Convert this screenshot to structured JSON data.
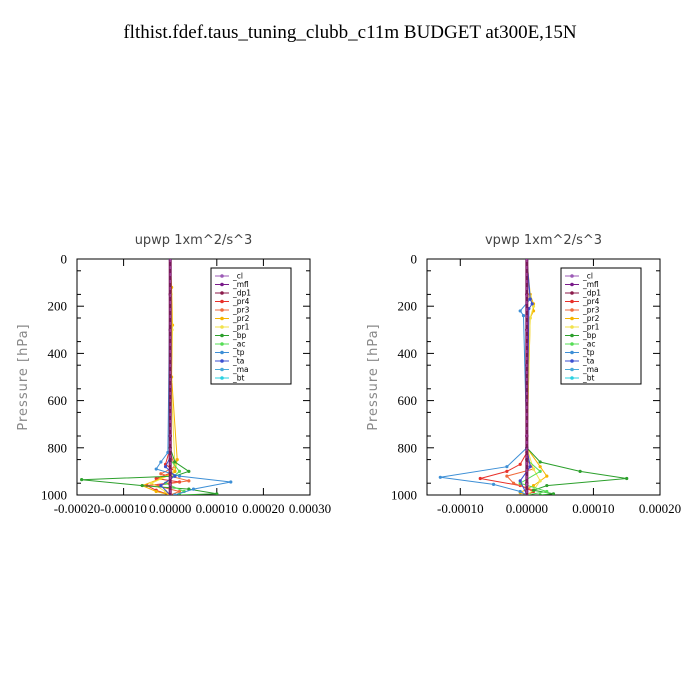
{
  "figure_title": "flthist.fdef.taus_tuning_clubb_c11m  BUDGET at300E,15N",
  "chart_data": [
    {
      "type": "line",
      "title": "upwp   1xm^2/s^3",
      "ylabel": "Pressure [hPa]",
      "xlabel": "",
      "xlim": [
        -0.0002,
        0.0003
      ],
      "ylim": [
        0,
        1000
      ],
      "y_inverted": true,
      "xticks": [
        -0.0002,
        -0.0001,
        0.0,
        0.0001,
        0.0002,
        0.0003
      ],
      "xtick_labels": [
        "-0.00020",
        "-0.00010",
        "0.00000",
        "0.00010",
        "0.00020",
        "0.00030"
      ],
      "yticks": [
        0,
        200,
        400,
        600,
        800,
        1000
      ],
      "ytick_labels": [
        "0",
        "200",
        "400",
        "600",
        "800",
        "1000"
      ],
      "legend_position": "top-right",
      "series": [
        {
          "name": "_cl",
          "color": "#9b59b6",
          "x": [
            0,
            0,
            0,
            0,
            0,
            0,
            0,
            0,
            0
          ],
          "y": [
            0,
            150,
            300,
            450,
            600,
            750,
            850,
            950,
            1000
          ]
        },
        {
          "name": "_mfl",
          "color": "#7a1a8a",
          "x": [
            0,
            0,
            0,
            0,
            0,
            0,
            0,
            0,
            0
          ],
          "y": [
            0,
            150,
            300,
            450,
            600,
            750,
            850,
            950,
            1000
          ]
        },
        {
          "name": "_dp1",
          "color": "#8b1a4a",
          "x": [
            0,
            0,
            0,
            0,
            0,
            0,
            0,
            0,
            0
          ],
          "y": [
            0,
            150,
            300,
            450,
            600,
            750,
            850,
            950,
            1000
          ]
        },
        {
          "name": "_pr4",
          "color": "#e8302a",
          "x": [
            0,
            0,
            -1e-05,
            1e-05,
            -3e-05,
            2e-05,
            -5e-05,
            -3e-05,
            0
          ],
          "y": [
            0,
            800,
            870,
            900,
            930,
            945,
            960,
            980,
            1000
          ]
        },
        {
          "name": "_pr3",
          "color": "#f06a3c",
          "x": [
            0,
            0,
            1e-05,
            -2e-05,
            4e-05,
            -3e-05,
            2e-05,
            0
          ],
          "y": [
            0,
            820,
            880,
            910,
            940,
            960,
            985,
            1000
          ]
        },
        {
          "name": "_pr2",
          "color": "#f5b400",
          "x": [
            0,
            3e-06,
            5e-06,
            3e-06,
            1.5e-05,
            1e-05,
            -2e-05,
            -6e-05,
            -3e-05,
            0
          ],
          "y": [
            0,
            120,
            280,
            500,
            850,
            900,
            930,
            960,
            985,
            1000
          ]
        },
        {
          "name": "_pr1",
          "color": "#f2e24a",
          "x": [
            0,
            2e-06,
            4e-06,
            2e-06,
            1e-05,
            5e-06,
            -4e-05,
            -1e-05,
            0
          ],
          "y": [
            0,
            150,
            300,
            520,
            870,
            910,
            950,
            985,
            1000
          ]
        },
        {
          "name": "_bp",
          "color": "#2ca02c",
          "x": [
            0,
            0,
            1e-05,
            4e-05,
            1e-05,
            -0.00019,
            -6e-05,
            4e-05,
            0.0001,
            2e-05
          ],
          "y": [
            0,
            800,
            860,
            900,
            920,
            935,
            960,
            975,
            995,
            1000
          ]
        },
        {
          "name": "_ac",
          "color": "#55dd55",
          "x": [
            0,
            0,
            2e-05,
            -1e-05,
            3e-05,
            1e-05
          ],
          "y": [
            0,
            850,
            900,
            950,
            985,
            1000
          ]
        },
        {
          "name": "_tp",
          "color": "#3d8fd6",
          "x": [
            0,
            -5e-06,
            -2e-05,
            -3e-05,
            2e-05,
            0.00013,
            5e-05,
            1e-05
          ],
          "y": [
            0,
            820,
            860,
            890,
            920,
            945,
            975,
            1000
          ]
        },
        {
          "name": "_ta",
          "color": "#3a4fd0",
          "x": [
            0,
            0,
            -1e-05,
            1e-05,
            -2e-05,
            0
          ],
          "y": [
            0,
            840,
            880,
            920,
            960,
            1000
          ]
        },
        {
          "name": "_ma",
          "color": "#4aaad8",
          "x": [
            0,
            0,
            0,
            0
          ],
          "y": [
            0,
            500,
            900,
            1000
          ]
        },
        {
          "name": "_bt",
          "color": "#2ad0e0",
          "x": [
            0,
            0,
            0,
            0
          ],
          "y": [
            0,
            500,
            900,
            1000
          ]
        }
      ]
    },
    {
      "type": "line",
      "title": "vpwp   1xm^2/s^3",
      "ylabel": "Pressure [hPa]",
      "xlabel": "",
      "xlim": [
        -0.00015,
        0.0002
      ],
      "ylim": [
        0,
        1000
      ],
      "y_inverted": true,
      "xticks": [
        -0.0001,
        0.0,
        0.0001,
        0.0002
      ],
      "xtick_labels": [
        "-0.00010",
        "0.00000",
        "0.00010",
        "0.00020"
      ],
      "yticks": [
        0,
        200,
        400,
        600,
        800,
        1000
      ],
      "ytick_labels": [
        "0",
        "200",
        "400",
        "600",
        "800",
        "1000"
      ],
      "legend_position": "top-right",
      "series": [
        {
          "name": "_cl",
          "color": "#9b59b6",
          "x": [
            0,
            0,
            0,
            0,
            0,
            0,
            0,
            0,
            0
          ],
          "y": [
            0,
            150,
            300,
            450,
            600,
            750,
            850,
            950,
            1000
          ]
        },
        {
          "name": "_mfl",
          "color": "#7a1a8a",
          "x": [
            0,
            0,
            0,
            0,
            0,
            0,
            0,
            0,
            0
          ],
          "y": [
            0,
            150,
            300,
            450,
            600,
            750,
            850,
            950,
            1000
          ]
        },
        {
          "name": "_dp1",
          "color": "#8b1a4a",
          "x": [
            0,
            0,
            0,
            0,
            0,
            0,
            0,
            0,
            0
          ],
          "y": [
            0,
            150,
            300,
            450,
            600,
            750,
            850,
            950,
            1000
          ]
        },
        {
          "name": "_pr4",
          "color": "#e8302a",
          "x": [
            0,
            0,
            -1e-05,
            -3e-05,
            -7e-05,
            -1e-05,
            1e-05,
            0
          ],
          "y": [
            0,
            820,
            870,
            900,
            930,
            960,
            985,
            1000
          ]
        },
        {
          "name": "_pr3",
          "color": "#f06a3c",
          "x": [
            0,
            0,
            1e-05,
            -3e-05,
            -2e-05,
            1e-05,
            0
          ],
          "y": [
            0,
            850,
            890,
            920,
            950,
            980,
            1000
          ]
        },
        {
          "name": "_pr2",
          "color": "#f5b400",
          "x": [
            0,
            5e-06,
            1e-05,
            1e-05,
            5e-06,
            0,
            2e-05,
            3e-05,
            1e-05,
            -1e-05,
            0
          ],
          "y": [
            0,
            150,
            190,
            220,
            250,
            800,
            880,
            920,
            960,
            990,
            1000
          ]
        },
        {
          "name": "_pr1",
          "color": "#f2e24a",
          "x": [
            0,
            5e-06,
            1e-05,
            5e-06,
            0,
            1e-05,
            2e-05,
            1e-05,
            0
          ],
          "y": [
            0,
            160,
            200,
            250,
            800,
            890,
            940,
            980,
            1000
          ]
        },
        {
          "name": "_bp",
          "color": "#2ca02c",
          "x": [
            0,
            0,
            2e-05,
            8e-05,
            0.00015,
            3e-05,
            1e-05,
            4e-05,
            2e-05
          ],
          "y": [
            0,
            800,
            860,
            900,
            930,
            960,
            980,
            995,
            1000
          ]
        },
        {
          "name": "_ac",
          "color": "#55dd55",
          "x": [
            0,
            0,
            2e-05,
            -1e-05,
            3e-05,
            0
          ],
          "y": [
            0,
            850,
            900,
            950,
            985,
            1000
          ]
        },
        {
          "name": "_tp",
          "color": "#3d8fd6",
          "x": [
            0,
            5e-06,
            -1e-05,
            -5e-06,
            0,
            -3e-05,
            -0.00013,
            -5e-05,
            -1e-05,
            0
          ],
          "y": [
            0,
            170,
            220,
            240,
            800,
            880,
            925,
            955,
            985,
            1000
          ]
        },
        {
          "name": "_ta",
          "color": "#3a4fd0",
          "x": [
            0,
            5e-06,
            8e-06,
            3e-06,
            0,
            5e-06,
            -1e-05,
            0
          ],
          "y": [
            0,
            170,
            190,
            210,
            800,
            880,
            940,
            1000
          ]
        },
        {
          "name": "_ma",
          "color": "#4aaad8",
          "x": [
            0,
            0,
            0,
            0
          ],
          "y": [
            0,
            500,
            900,
            1000
          ]
        },
        {
          "name": "_bt",
          "color": "#2ad0e0",
          "x": [
            0,
            0,
            0,
            0
          ],
          "y": [
            0,
            500,
            900,
            1000
          ]
        }
      ]
    }
  ]
}
